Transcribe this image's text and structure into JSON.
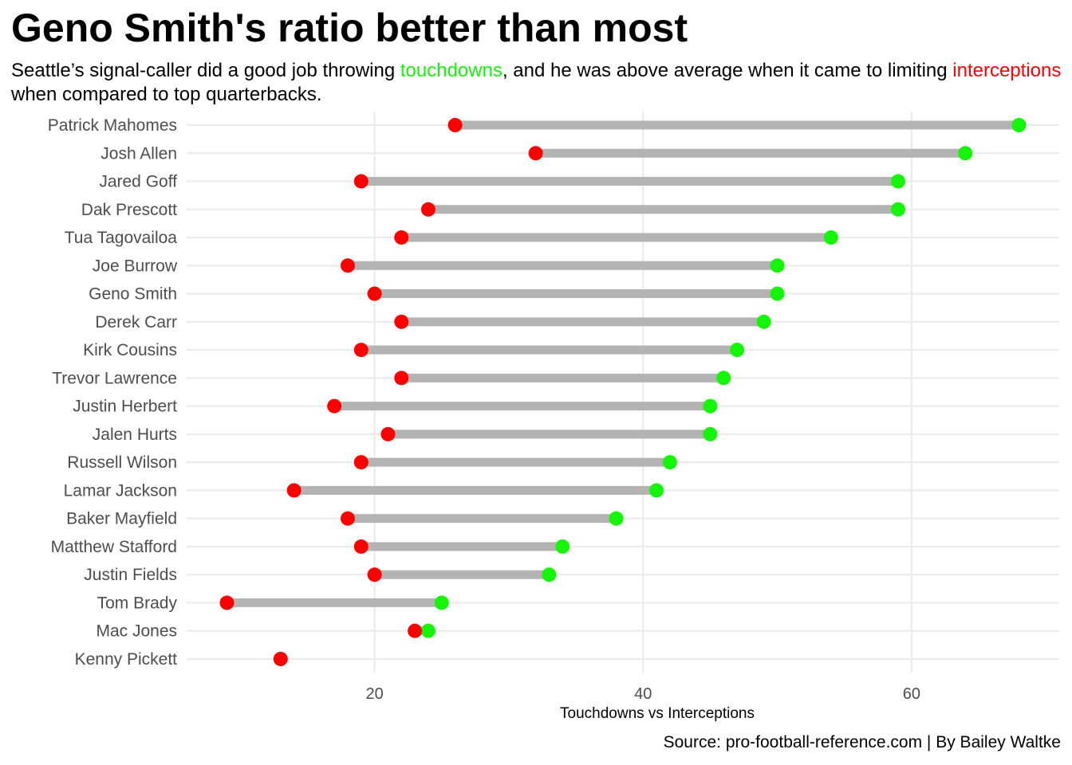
{
  "chart_data": {
    "type": "dumbbell",
    "title": "Geno Smith's ratio better than most",
    "subtitle": {
      "part1": "Seattle’s signal-caller did a good job throwing ",
      "touchdowns_word": "touchdowns",
      "part2": ", and he was above average when it came to limiting ",
      "interceptions_word": "interceptions",
      "part3": " when compared to top quarterbacks."
    },
    "xlabel": "Touchdowns vs Interceptions",
    "caption": "Source: pro-football-reference.com | By Bailey Waltke",
    "x_ticks": [
      20,
      40,
      60
    ],
    "xlim": [
      6,
      71
    ],
    "grid": true,
    "colors": {
      "touchdowns": "#14f50a",
      "interceptions": "#ff0000",
      "segment": "#b3b3b3",
      "grid": "#ebebeb"
    },
    "series": [
      {
        "name": "touchdowns"
      },
      {
        "name": "interceptions"
      }
    ],
    "players": [
      {
        "name": "Patrick Mahomes",
        "td": 68,
        "int": 26
      },
      {
        "name": "Josh Allen",
        "td": 64,
        "int": 32
      },
      {
        "name": "Jared Goff",
        "td": 59,
        "int": 19
      },
      {
        "name": "Dak Prescott",
        "td": 59,
        "int": 24
      },
      {
        "name": "Tua Tagovailoa",
        "td": 54,
        "int": 22
      },
      {
        "name": "Joe Burrow",
        "td": 50,
        "int": 18
      },
      {
        "name": "Geno Smith",
        "td": 50,
        "int": 20
      },
      {
        "name": "Derek Carr",
        "td": 49,
        "int": 22
      },
      {
        "name": "Kirk Cousins",
        "td": 47,
        "int": 19
      },
      {
        "name": "Trevor Lawrence",
        "td": 46,
        "int": 22
      },
      {
        "name": "Justin Herbert",
        "td": 45,
        "int": 17
      },
      {
        "name": "Jalen Hurts",
        "td": 45,
        "int": 21
      },
      {
        "name": "Russell Wilson",
        "td": 42,
        "int": 19
      },
      {
        "name": "Lamar Jackson",
        "td": 41,
        "int": 14
      },
      {
        "name": "Baker Mayfield",
        "td": 38,
        "int": 18
      },
      {
        "name": "Matthew Stafford",
        "td": 34,
        "int": 19
      },
      {
        "name": "Justin Fields",
        "td": 33,
        "int": 20
      },
      {
        "name": "Tom Brady",
        "td": 25,
        "int": 9
      },
      {
        "name": "Mac Jones",
        "td": 24,
        "int": 23
      },
      {
        "name": "Kenny Pickett",
        "td": 13,
        "int": 13
      }
    ]
  }
}
